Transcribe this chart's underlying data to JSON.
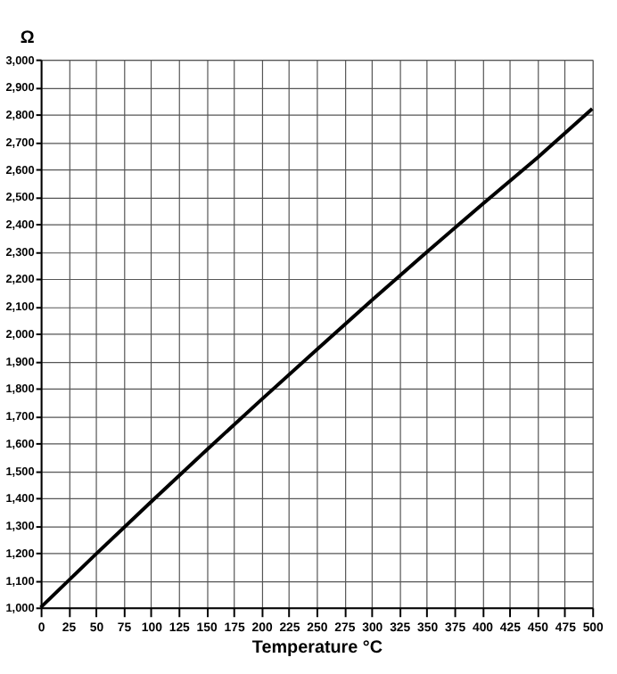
{
  "chart_data": {
    "type": "line",
    "xlabel": "Temperature °C",
    "ylabel": "Ω",
    "x": [
      0,
      50,
      100,
      150,
      200,
      250,
      300,
      350,
      400,
      450,
      500
    ],
    "series": [
      {
        "color": "#000000",
        "values": [
          1000,
          1194,
          1385,
          1573,
          1758,
          1940,
          2120,
          2297,
          2470,
          2640,
          2820
        ]
      }
    ],
    "xlim": [
      0,
      500
    ],
    "xticks": [
      0,
      25,
      50,
      75,
      100,
      125,
      150,
      175,
      200,
      225,
      250,
      275,
      300,
      325,
      350,
      375,
      400,
      425,
      450,
      475,
      500
    ],
    "ylim": [
      1000,
      3000
    ],
    "yticks": [
      {
        "value": 1000,
        "label": "1,000"
      },
      {
        "value": 1100,
        "label": "1,100"
      },
      {
        "value": 1200,
        "label": "1,200"
      },
      {
        "value": 1300,
        "label": "1,300"
      },
      {
        "value": 1400,
        "label": "1,400"
      },
      {
        "value": 1500,
        "label": "1,500"
      },
      {
        "value": 1600,
        "label": "1,600"
      },
      {
        "value": 1700,
        "label": "1,700"
      },
      {
        "value": 1800,
        "label": "1,800"
      },
      {
        "value": 1900,
        "label": "1,900"
      },
      {
        "value": 2000,
        "label": "2,000"
      },
      {
        "value": 2100,
        "label": "2,100"
      },
      {
        "value": 2200,
        "label": "2,200"
      },
      {
        "value": 2300,
        "label": "2,300"
      },
      {
        "value": 2400,
        "label": "2,400"
      },
      {
        "value": 2500,
        "label": "2,500"
      },
      {
        "value": 2600,
        "label": "2,600"
      },
      {
        "value": 2700,
        "label": "2,700"
      },
      {
        "value": 2800,
        "label": "2,800"
      },
      {
        "value": 2900,
        "label": "2,900"
      },
      {
        "value": 3000,
        "label": "3,000"
      }
    ],
    "grid": true,
    "marker": "none",
    "line_style": "solid"
  }
}
